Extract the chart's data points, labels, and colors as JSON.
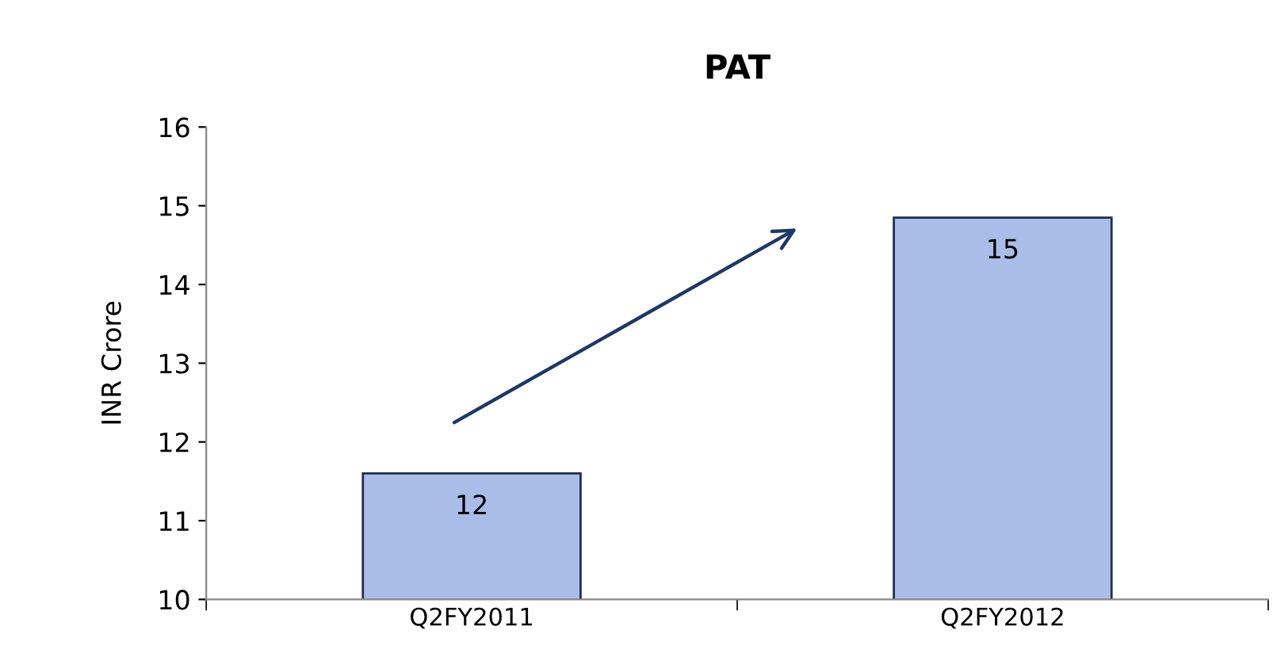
{
  "chart_data": {
    "type": "bar",
    "title": "PAT",
    "ylabel": "INR Crore",
    "categories": [
      "Q2FY2011",
      "Q2FY2012"
    ],
    "series": [
      {
        "color": "#a9bde8",
        "values": [
          11.6,
          14.85
        ],
        "value_labels": [
          "12",
          "15"
        ]
      }
    ],
    "ylim": [
      10,
      16
    ],
    "yticks": [
      10,
      11,
      12,
      13,
      14,
      15,
      16
    ],
    "grid": false,
    "legend": false
  }
}
